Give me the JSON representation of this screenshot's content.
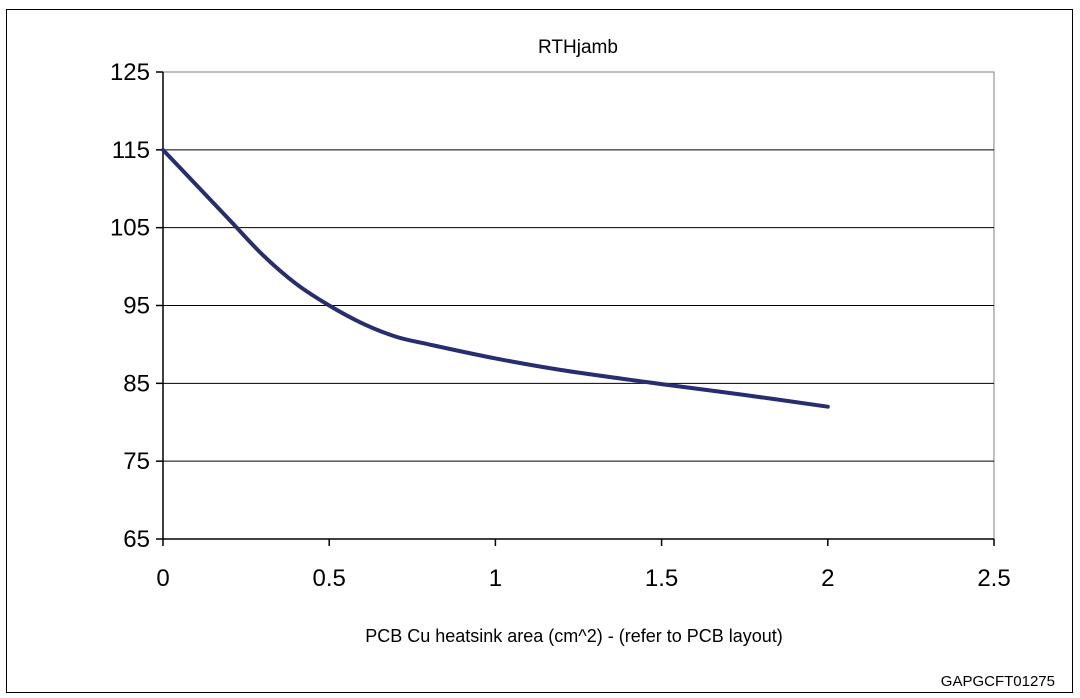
{
  "chart_data": {
    "type": "line",
    "title": "RTHjamb",
    "xlabel": "PCB Cu heatsink area (cm^2) -  (refer to PCB layout)",
    "ylabel": "",
    "xlim": [
      0,
      2.5
    ],
    "ylim": [
      65,
      125
    ],
    "x_ticks": [
      0,
      0.5,
      1,
      1.5,
      2,
      2.5
    ],
    "x_tick_labels": [
      "0",
      "0.5",
      "1",
      "1.5",
      "2",
      "2.5"
    ],
    "y_ticks": [
      65,
      75,
      85,
      95,
      105,
      115,
      125
    ],
    "y_tick_labels": [
      "65",
      "75",
      "85",
      "95",
      "105",
      "115",
      "125"
    ],
    "grid": {
      "horizontal": true,
      "vertical": false
    },
    "legend": "none",
    "series": [
      {
        "color": "#272d6e",
        "x": [
          0,
          0.1,
          0.2,
          0.3,
          0.4,
          0.5,
          0.6,
          0.7,
          0.8,
          1.0,
          1.2,
          1.5,
          1.75,
          2.0
        ],
        "y": [
          115,
          110.5,
          106,
          101.5,
          97.8,
          95,
          92.7,
          91,
          90,
          88.2,
          86.7,
          84.9,
          83.5,
          82
        ]
      }
    ]
  },
  "figure_code": "GAPGCFT01275"
}
